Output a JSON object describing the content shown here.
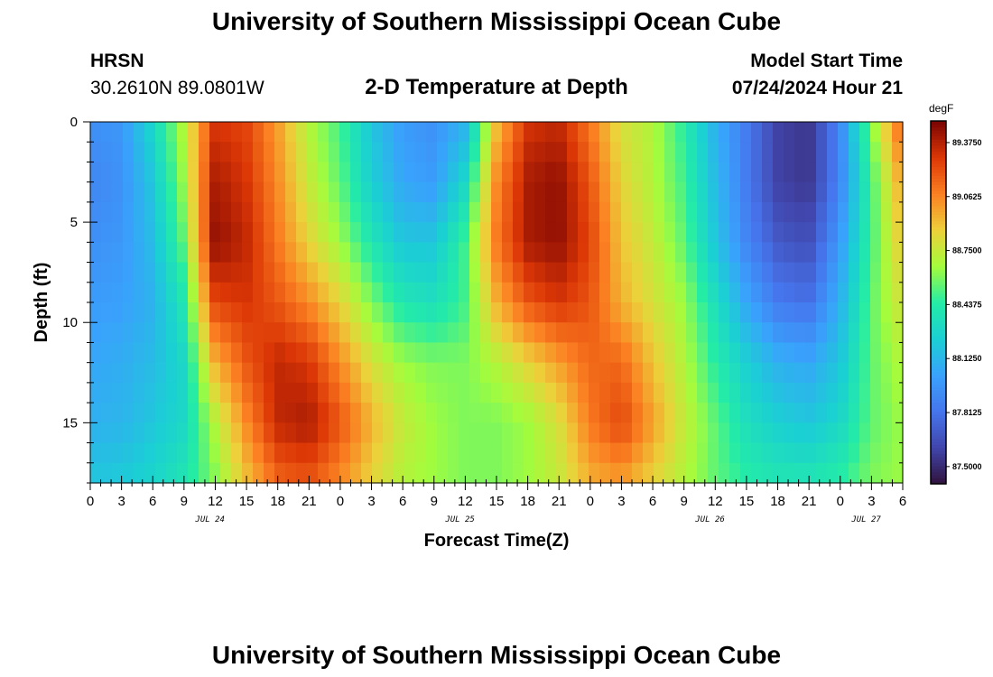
{
  "header": {
    "main_title": "University of Southern Mississippi Ocean Cube",
    "station": "HRSN",
    "coordinates": "30.2610N  89.0801W",
    "plot_title": "2-D Temperature at Depth",
    "model_label": "Model Start Time",
    "model_value": "07/24/2024 Hour 21"
  },
  "footer": {
    "title": "University of Southern Mississippi Ocean Cube"
  },
  "chart_data": {
    "type": "heatmap",
    "title": "2-D Temperature at Depth",
    "xlabel": "Forecast Time(Z)",
    "ylabel": "Depth (ft)",
    "x_range": [
      0,
      78
    ],
    "y_range": [
      0,
      18
    ],
    "x_ticks": [
      {
        "v": 0,
        "l": "0"
      },
      {
        "v": 3,
        "l": "3"
      },
      {
        "v": 6,
        "l": "6"
      },
      {
        "v": 9,
        "l": "9"
      },
      {
        "v": 12,
        "l": "12"
      },
      {
        "v": 15,
        "l": "15"
      },
      {
        "v": 18,
        "l": "18"
      },
      {
        "v": 21,
        "l": "21"
      },
      {
        "v": 24,
        "l": "0"
      },
      {
        "v": 27,
        "l": "3"
      },
      {
        "v": 30,
        "l": "6"
      },
      {
        "v": 33,
        "l": "9"
      },
      {
        "v": 36,
        "l": "12"
      },
      {
        "v": 39,
        "l": "15"
      },
      {
        "v": 42,
        "l": "18"
      },
      {
        "v": 45,
        "l": "21"
      },
      {
        "v": 48,
        "l": "0"
      },
      {
        "v": 51,
        "l": "3"
      },
      {
        "v": 54,
        "l": "6"
      },
      {
        "v": 57,
        "l": "9"
      },
      {
        "v": 60,
        "l": "12"
      },
      {
        "v": 63,
        "l": "15"
      },
      {
        "v": 66,
        "l": "18"
      },
      {
        "v": 69,
        "l": "21"
      },
      {
        "v": 72,
        "l": "0"
      },
      {
        "v": 75,
        "l": "3"
      },
      {
        "v": 78,
        "l": "6"
      }
    ],
    "day_labels": [
      {
        "v": 11.5,
        "l": "JUL 24"
      },
      {
        "v": 35.5,
        "l": "JUL 25"
      },
      {
        "v": 59.5,
        "l": "JUL 26"
      },
      {
        "v": 74.5,
        "l": "JUL 27"
      }
    ],
    "y_ticks": [
      0,
      5,
      10,
      15
    ],
    "colorbar": {
      "unit": "degF",
      "min": 87.4,
      "max": 89.5,
      "labels": [
        87.5,
        87.8125,
        88.125,
        88.4375,
        88.75,
        89.0625,
        89.375
      ],
      "label_text": [
        "87.5000",
        "87.8125",
        "88.1250",
        "88.4375",
        "88.7500",
        "89.0625",
        "89.3750"
      ]
    },
    "depths_ft": [
      0,
      3,
      6,
      9,
      12,
      15,
      18
    ],
    "times_hr": [
      0,
      3,
      6,
      9,
      12,
      15,
      18,
      21,
      24,
      27,
      30,
      33,
      36,
      39,
      42,
      45,
      48,
      51,
      54,
      57,
      60,
      63,
      66,
      69,
      72,
      75,
      78
    ],
    "temperature_degF": [
      [
        87.95,
        87.98,
        88.3,
        88.7,
        89.3,
        89.25,
        89.0,
        88.7,
        88.5,
        88.2,
        88.0,
        87.95,
        88.1,
        88.9,
        89.3,
        89.35,
        89.1,
        88.8,
        88.7,
        88.45,
        88.1,
        87.85,
        87.6,
        87.55,
        87.9,
        88.6,
        89.2
      ],
      [
        87.9,
        87.95,
        88.2,
        88.65,
        89.4,
        89.3,
        89.05,
        88.75,
        88.55,
        88.25,
        88.05,
        88.0,
        88.3,
        89.05,
        89.4,
        89.45,
        89.2,
        88.85,
        88.7,
        88.5,
        88.15,
        87.85,
        87.6,
        87.55,
        87.9,
        88.5,
        89.0
      ],
      [
        87.95,
        87.98,
        88.15,
        88.55,
        89.45,
        89.35,
        89.1,
        88.85,
        88.65,
        88.4,
        88.2,
        88.2,
        88.5,
        89.1,
        89.4,
        89.45,
        89.25,
        88.9,
        88.75,
        88.55,
        88.2,
        87.9,
        87.7,
        87.65,
        88.0,
        88.5,
        88.9
      ],
      [
        88.0,
        88.02,
        88.1,
        88.4,
        89.25,
        89.3,
        89.2,
        89.05,
        88.85,
        88.6,
        88.4,
        88.35,
        88.5,
        88.95,
        89.2,
        89.3,
        89.2,
        88.95,
        88.8,
        88.65,
        88.35,
        88.05,
        87.85,
        87.8,
        88.1,
        88.55,
        88.8
      ],
      [
        88.05,
        88.08,
        88.15,
        88.3,
        88.95,
        89.2,
        89.35,
        89.3,
        89.05,
        88.8,
        88.65,
        88.6,
        88.6,
        88.7,
        88.85,
        89.0,
        89.15,
        89.15,
        88.9,
        88.7,
        88.45,
        88.25,
        88.1,
        88.05,
        88.2,
        88.55,
        88.7
      ],
      [
        88.1,
        88.12,
        88.2,
        88.3,
        88.7,
        89.05,
        89.35,
        89.4,
        89.2,
        88.95,
        88.75,
        88.65,
        88.6,
        88.6,
        88.65,
        88.8,
        89.1,
        89.25,
        89.0,
        88.75,
        88.55,
        88.35,
        88.25,
        88.2,
        88.3,
        88.55,
        88.65
      ],
      [
        88.2,
        88.22,
        88.28,
        88.4,
        88.6,
        88.9,
        89.15,
        89.2,
        89.05,
        88.85,
        88.7,
        88.65,
        88.6,
        88.6,
        88.65,
        88.75,
        88.95,
        89.0,
        88.85,
        88.7,
        88.55,
        88.45,
        88.4,
        88.4,
        88.45,
        88.6,
        88.65
      ]
    ]
  }
}
